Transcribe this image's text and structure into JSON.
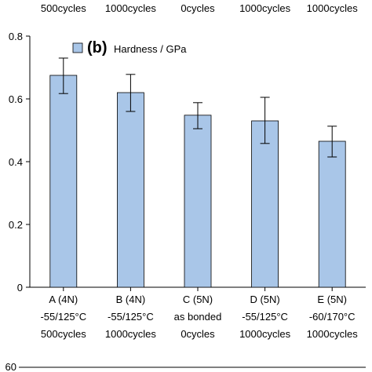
{
  "chart_data": {
    "type": "bar",
    "title": "",
    "xlabel": "",
    "ylabel": "",
    "panel_label": "(b)",
    "ylim": [
      0,
      0.8
    ],
    "yticks": [
      "0",
      "0.2",
      "0.4",
      "0.6",
      "0.8"
    ],
    "categories": [
      {
        "line1": "A (4N)",
        "line2": "-55/125°C",
        "line3": "500cycles"
      },
      {
        "line1": "B (4N)",
        "line2": "-55/125°C",
        "line3": "1000cycles"
      },
      {
        "line1": "C (5N)",
        "line2": "as bonded",
        "line3": "0cycles"
      },
      {
        "line1": "D (5N)",
        "line2": "-55/125°C",
        "line3": "1000cycles"
      },
      {
        "line1": "E (5N)",
        "line2": "-60/170°C",
        "line3": "1000cycles"
      }
    ],
    "series": [
      {
        "name": "Hardness / GPa",
        "color": "#a9c6e8",
        "values": [
          0.675,
          0.62,
          0.548,
          0.53,
          0.465
        ],
        "error_low": [
          0.617,
          0.56,
          0.505,
          0.458,
          0.415
        ],
        "error_high": [
          0.73,
          0.678,
          0.588,
          0.605,
          0.513
        ]
      }
    ],
    "grid": false,
    "legend": "top-left",
    "top_cropped_labels": [
      "500cycles",
      "1000cycles",
      "0cycles",
      "1000cycles",
      "1000cycles"
    ],
    "bottom_cropped_tick": "60"
  }
}
